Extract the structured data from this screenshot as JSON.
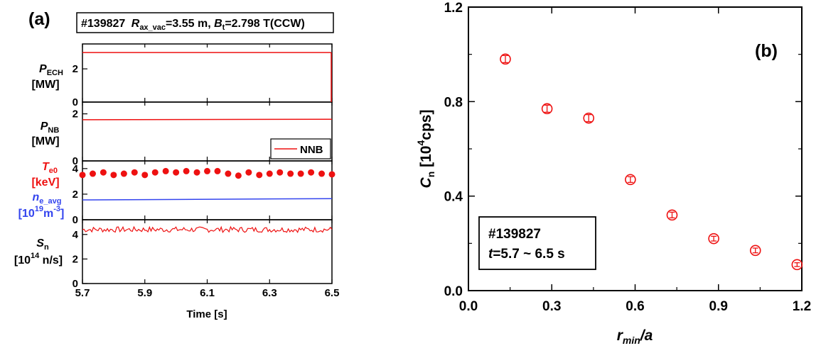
{
  "panel_a": {
    "letter": "(a)",
    "header": {
      "shot": "#139827",
      "r_sym": "R",
      "r_sub": "ax_vac",
      "r_val": "=3.55 m, ",
      "b_sym": "B",
      "b_sub": "t",
      "b_val": "=2.798 T(CCW)"
    },
    "xlabel": "Time [s]",
    "xticks": [
      "5.7",
      "5.9",
      "6.1",
      "6.3",
      "6.5"
    ],
    "labels": {
      "pech_sym": "P",
      "pech_sub": "ECH",
      "pech_unit": "[MW]",
      "pnb_sym": "P",
      "pnb_sub": "NB",
      "pnb_unit": "[MW]",
      "te_sym": "T",
      "te_sub": "e0",
      "te_unit": "[keV]",
      "ne_sym": "n",
      "ne_sub": "e_avg",
      "ne_unit_a": "[10",
      "ne_unit_exp": "19",
      "ne_unit_b": "m",
      "ne_unit_exp2": "-3",
      "ne_unit_c": "]",
      "sn_sym": "S",
      "sn_sub": "n",
      "sn_unit_a": "[10",
      "sn_unit_exp": "14",
      "sn_unit_b": " n/s]"
    },
    "legend_nnb": "NNB",
    "colors": {
      "red": "#ee1111",
      "blue": "#3344ee"
    }
  },
  "chart_data": [
    {
      "type": "line",
      "panel": "a-1",
      "x": [
        5.7,
        6.5
      ],
      "series": [
        {
          "values": [
            2.98,
            2.98
          ]
        }
      ],
      "xlim": [
        5.7,
        6.5
      ],
      "ylim": [
        0,
        3.5
      ],
      "yticks": [
        "0",
        "2"
      ]
    },
    {
      "type": "line",
      "panel": "a-2",
      "x": [
        5.7,
        6.5
      ],
      "series": [
        {
          "name": "NNB",
          "values": [
            1.75,
            1.77
          ]
        }
      ],
      "xlim": [
        5.7,
        6.5
      ],
      "ylim": [
        0,
        2.5
      ],
      "yticks": [
        "0",
        "2"
      ]
    },
    {
      "type": "scatter",
      "panel": "a-3",
      "xlim": [
        5.7,
        6.5
      ],
      "ylim": [
        0,
        4.6
      ],
      "yticks": [
        "0",
        "2",
        "4"
      ],
      "te_x": [
        5.7,
        5.733,
        5.767,
        5.8,
        5.833,
        5.867,
        5.9,
        5.933,
        5.967,
        6.0,
        6.033,
        6.067,
        6.1,
        6.133,
        6.167,
        6.2,
        6.233,
        6.267,
        6.3,
        6.333,
        6.367,
        6.4,
        6.433,
        6.467,
        6.5
      ],
      "te_y": [
        3.5,
        3.6,
        3.7,
        3.5,
        3.6,
        3.7,
        3.5,
        3.7,
        3.8,
        3.7,
        3.8,
        3.7,
        3.8,
        3.8,
        3.6,
        3.45,
        3.7,
        3.5,
        3.6,
        3.7,
        3.6,
        3.6,
        3.7,
        3.6,
        3.55
      ],
      "ne_x": [
        5.7,
        6.5
      ],
      "ne_y": [
        1.55,
        1.65
      ]
    },
    {
      "type": "line",
      "panel": "a-4",
      "xlim": [
        5.7,
        6.5
      ],
      "ylim": [
        0,
        5.2
      ],
      "yticks": [
        "0",
        "2",
        "4"
      ],
      "mean": 4.4
    },
    {
      "type": "scatter",
      "panel": "b",
      "letter": "(b)",
      "x": [
        0.133,
        0.283,
        0.433,
        0.583,
        0.733,
        0.883,
        1.033,
        1.183
      ],
      "y": [
        0.98,
        0.77,
        0.73,
        0.47,
        0.32,
        0.22,
        0.17,
        0.11
      ],
      "err": [
        0.015,
        0.015,
        0.015,
        0.012,
        0.012,
        0.01,
        0.01,
        0.008
      ],
      "xlim": [
        0,
        1.2
      ],
      "ylim": [
        0,
        1.2
      ],
      "xticks": [
        "0.0",
        "0.3",
        "0.6",
        "0.9",
        "1.2"
      ],
      "yticks": [
        "0.0",
        "0.4",
        "0.8",
        "1.2"
      ],
      "ylabel_sym": "C",
      "ylabel_sub": "n",
      "ylabel_unit_a": " [10",
      "ylabel_unit_exp": "4",
      "ylabel_unit_b": "cps]",
      "xlabel_sym": "r",
      "xlabel_sub": "min",
      "xlabel_rest": "/a",
      "annot_line1": "#139827",
      "annot_t": "t",
      "annot_line2": "=5.7 ~ 6.5 s"
    }
  ]
}
